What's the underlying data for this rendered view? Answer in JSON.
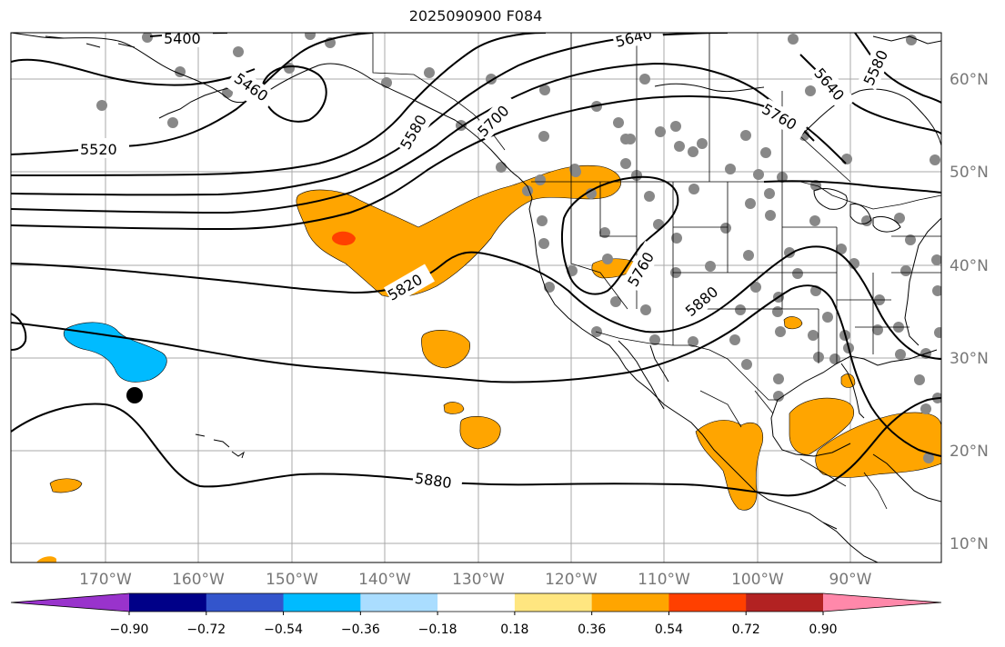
{
  "title": "2025090900 F084",
  "lon_labels": [
    "170°W",
    "160°W",
    "150°W",
    "140°W",
    "130°W",
    "120°W",
    "110°W",
    "100°W",
    "90°W"
  ],
  "lat_labels": [
    "60°N",
    "50°N",
    "40°N",
    "30°N",
    "20°N",
    "10°N"
  ],
  "contour_labels": [
    "5400",
    "5460",
    "5520",
    "5580",
    "5640",
    "5700",
    "5760",
    "5820",
    "5880"
  ],
  "colorbar": {
    "ticks": [
      "−0.90",
      "−0.72",
      "−0.54",
      "−0.36",
      "−0.18",
      "0.18",
      "0.36",
      "0.54",
      "0.72",
      "0.90"
    ],
    "colors": [
      "#9933cc",
      "#000088",
      "#3355cc",
      "#00bbff",
      "#aaddff",
      "#ffffff",
      "#ffe680",
      "#ffa500",
      "#ff4000",
      "#b22222",
      "#ff88aa"
    ]
  },
  "colors": {
    "positive_fill": "#ffa500",
    "positive_strong": "#ff4000",
    "negative_fill": "#00bbff",
    "station_dot": "#888888",
    "contour": "#000000"
  }
}
